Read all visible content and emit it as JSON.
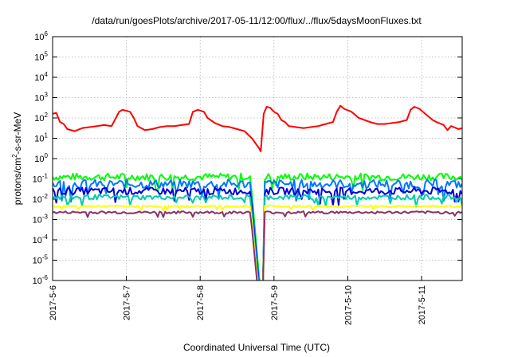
{
  "chart_data": {
    "type": "line",
    "title": "/data/run/goesPlots/archive/2017-05-11/12:00/flux/../flux/5daysMoonFluxes.txt",
    "xlabel": "Coordinated Universal Time (UTC)",
    "ylabel": {
      "prefix": "protons/cm",
      "sup": "2",
      "suffix": "-s-sr-MeV"
    },
    "yscale": "log",
    "ylim_exp": [
      -6,
      6
    ],
    "y_tick_labels": [
      {
        "base": "10",
        "exp": "-6"
      },
      {
        "base": "10",
        "exp": "-5"
      },
      {
        "base": "10",
        "exp": "-4"
      },
      {
        "base": "10",
        "exp": "-3"
      },
      {
        "base": "10",
        "exp": "-2"
      },
      {
        "base": "10",
        "exp": "-1"
      },
      {
        "base": "10",
        "exp": "0"
      },
      {
        "base": "10",
        "exp": "1"
      },
      {
        "base": "10",
        "exp": "2"
      },
      {
        "base": "10",
        "exp": "3"
      },
      {
        "base": "10",
        "exp": "4"
      },
      {
        "base": "10",
        "exp": "5"
      },
      {
        "base": "10",
        "exp": "6"
      }
    ],
    "x_tick_labels": [
      "2017-5-6",
      "2017-5-7",
      "2017-5-8",
      "2017-5-9",
      "2017-5-10",
      "2017-5-11"
    ],
    "xlim_days": [
      0,
      5.55
    ],
    "grid": true,
    "series": [
      {
        "color": "#ff0000",
        "points": [
          [
            0,
            2.2
          ],
          [
            0.05,
            2.25
          ],
          [
            0.1,
            1.8
          ],
          [
            0.15,
            1.7
          ],
          [
            0.2,
            1.45
          ],
          [
            0.3,
            1.35
          ],
          [
            0.4,
            1.5
          ],
          [
            0.5,
            1.55
          ],
          [
            0.6,
            1.6
          ],
          [
            0.7,
            1.65
          ],
          [
            0.8,
            1.6
          ],
          [
            0.9,
            2.3
          ],
          [
            0.95,
            2.4
          ],
          [
            1.05,
            2.3
          ],
          [
            1.1,
            2.0
          ],
          [
            1.15,
            1.6
          ],
          [
            1.25,
            1.4
          ],
          [
            1.35,
            1.45
          ],
          [
            1.45,
            1.55
          ],
          [
            1.55,
            1.6
          ],
          [
            1.65,
            1.6
          ],
          [
            1.75,
            1.65
          ],
          [
            1.85,
            1.7
          ],
          [
            1.9,
            2.3
          ],
          [
            1.97,
            2.4
          ],
          [
            2.05,
            2.3
          ],
          [
            2.1,
            2.0
          ],
          [
            2.2,
            1.75
          ],
          [
            2.3,
            1.6
          ],
          [
            2.4,
            1.55
          ],
          [
            2.5,
            1.45
          ],
          [
            2.6,
            1.35
          ],
          [
            2.7,
            1.0
          ],
          [
            2.8,
            0.5
          ],
          [
            2.82,
            0.35
          ],
          [
            2.86,
            2.2
          ],
          [
            2.9,
            2.55
          ],
          [
            2.95,
            2.5
          ],
          [
            3.0,
            2.3
          ],
          [
            3.05,
            2.2
          ],
          [
            3.1,
            1.9
          ],
          [
            3.15,
            1.8
          ],
          [
            3.2,
            1.6
          ],
          [
            3.3,
            1.55
          ],
          [
            3.4,
            1.5
          ],
          [
            3.5,
            1.55
          ],
          [
            3.6,
            1.6
          ],
          [
            3.7,
            1.7
          ],
          [
            3.8,
            1.8
          ],
          [
            3.85,
            2.3
          ],
          [
            3.9,
            2.6
          ],
          [
            3.95,
            2.45
          ],
          [
            4.05,
            2.3
          ],
          [
            4.15,
            2.0
          ],
          [
            4.3,
            1.8
          ],
          [
            4.4,
            1.7
          ],
          [
            4.5,
            1.7
          ],
          [
            4.6,
            1.75
          ],
          [
            4.7,
            1.8
          ],
          [
            4.8,
            1.9
          ],
          [
            4.85,
            2.4
          ],
          [
            4.9,
            2.55
          ],
          [
            4.97,
            2.45
          ],
          [
            5.05,
            2.2
          ],
          [
            5.15,
            1.9
          ],
          [
            5.2,
            1.8
          ],
          [
            5.3,
            1.65
          ],
          [
            5.35,
            1.4
          ],
          [
            5.4,
            1.6
          ],
          [
            5.5,
            1.45
          ],
          [
            5.55,
            1.5
          ]
        ]
      },
      {
        "color": "#00ff00",
        "base": -0.9,
        "amp": 0.18
      },
      {
        "color": "#0077ff",
        "base": -1.25,
        "amp": 0.22
      },
      {
        "color": "#0000dd",
        "base": -1.6,
        "amp": 0.18
      },
      {
        "color": "#00ccaa",
        "base": -1.9,
        "amp": 0.12
      },
      {
        "color": "#ffff00",
        "base": -2.35,
        "amp": 0.05
      },
      {
        "color": "#883366",
        "base": -2.65,
        "amp": 0.06
      }
    ]
  }
}
